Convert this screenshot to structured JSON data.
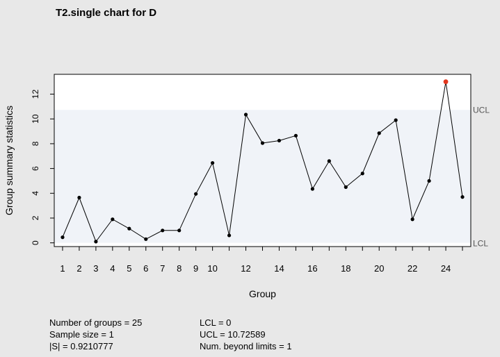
{
  "chart_data": {
    "type": "line",
    "title": "T2.single chart for D",
    "xlabel": "Group",
    "ylabel": "Group summary statistics",
    "x": [
      1,
      2,
      3,
      4,
      5,
      6,
      7,
      8,
      9,
      10,
      11,
      12,
      13,
      14,
      15,
      16,
      17,
      18,
      19,
      20,
      21,
      22,
      23,
      24,
      25
    ],
    "values": [
      0.45,
      3.65,
      0.1,
      1.9,
      1.15,
      0.3,
      1.0,
      1.0,
      3.95,
      6.45,
      0.6,
      10.35,
      8.05,
      8.25,
      8.65,
      4.35,
      6.6,
      4.5,
      5.6,
      8.85,
      9.9,
      1.9,
      5.0,
      13.0,
      3.7
    ],
    "xlim": [
      0.5,
      25.5
    ],
    "ylim": [
      -0.3,
      13.6
    ],
    "xticks": [
      1,
      2,
      3,
      4,
      5,
      6,
      7,
      8,
      9,
      10,
      12,
      14,
      16,
      18,
      20,
      22,
      24
    ],
    "yticks": [
      0,
      2,
      4,
      6,
      8,
      10,
      12
    ],
    "limits": {
      "ucl": 10.72589,
      "lcl": 0,
      "ucl_label": "UCL",
      "lcl_label": "LCL"
    },
    "colors": {
      "in_control_band": "#f0f3f8",
      "out_of_control_band": "#ffffff",
      "point": "#000000",
      "violation_point": "#e3371e",
      "limit_label": "#555555"
    },
    "grid": false
  },
  "summary": {
    "groups": "Number of groups = 25",
    "sample_size": "Sample size = 1",
    "s_det": "|S| = 0.9210777",
    "lcl": "LCL = 0",
    "ucl": "UCL = 10.72589",
    "beyond": "Num. beyond limits = 1"
  }
}
